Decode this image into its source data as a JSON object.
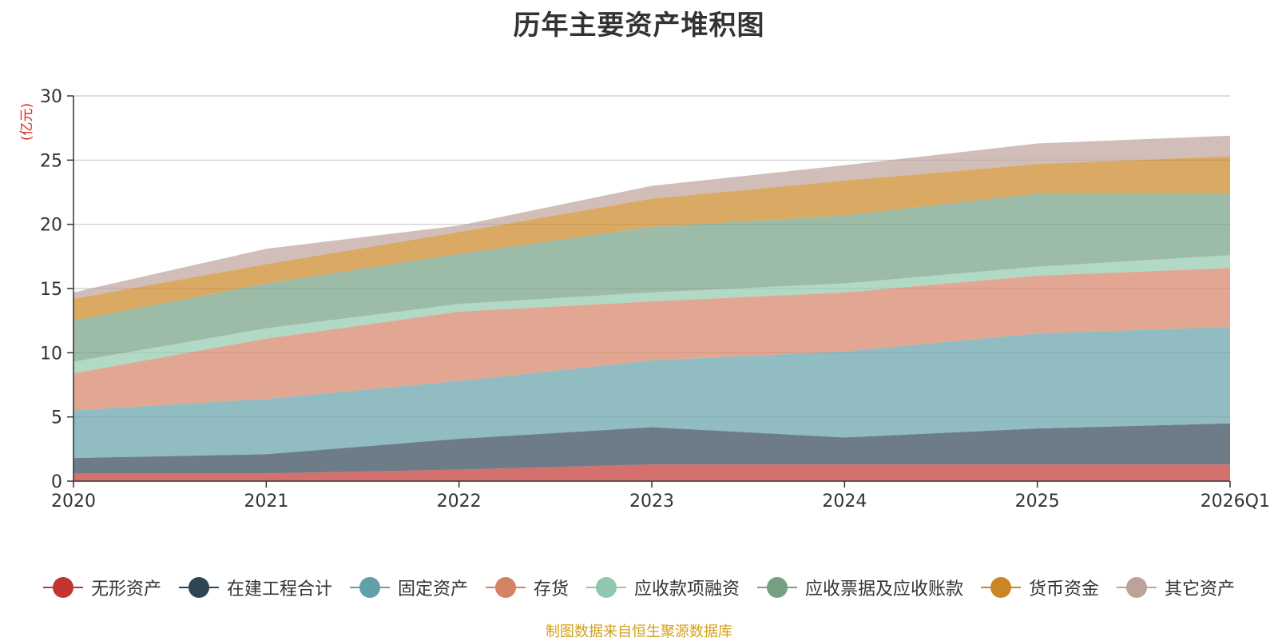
{
  "title": "历年主要资产堆积图",
  "unit_label": "(亿元)",
  "source": "制图数据来自恒生聚源数据库",
  "chart_data": {
    "type": "area",
    "stacked": true,
    "title": "历年主要资产堆积图",
    "ylabel": "(亿元)",
    "xlabel": "",
    "categories": [
      "2020",
      "2021",
      "2022",
      "2023",
      "2024",
      "2025",
      "2026Q1"
    ],
    "ylim": [
      0,
      30
    ],
    "yticks": [
      0,
      5,
      10,
      15,
      20,
      25,
      30
    ],
    "grid": true,
    "legend_position": "bottom",
    "series": [
      {
        "name": "无形资产",
        "color": "#c23531",
        "values": [
          0.6,
          0.6,
          0.9,
          1.3,
          1.3,
          1.3,
          1.3
        ]
      },
      {
        "name": "在建工程合计",
        "color": "#2f4554",
        "values": [
          1.2,
          1.5,
          2.4,
          2.9,
          2.1,
          2.8,
          3.2
        ]
      },
      {
        "name": "固定资产",
        "color": "#61a0a8",
        "values": [
          3.7,
          4.3,
          4.5,
          5.2,
          6.7,
          7.4,
          7.5
        ]
      },
      {
        "name": "存货",
        "color": "#d48265",
        "values": [
          2.9,
          4.7,
          5.4,
          4.6,
          4.6,
          4.5,
          4.6
        ]
      },
      {
        "name": "应收款项融资",
        "color": "#91c7ae",
        "values": [
          0.9,
          0.8,
          0.6,
          0.7,
          0.7,
          0.7,
          1.0
        ]
      },
      {
        "name": "应收票据及应收账款",
        "color": "#749f83",
        "values": [
          3.2,
          3.5,
          3.9,
          5.1,
          5.3,
          5.7,
          4.8
        ]
      },
      {
        "name": "货币资金",
        "color": "#ca8622",
        "values": [
          1.7,
          1.5,
          1.7,
          2.2,
          2.7,
          2.3,
          2.9
        ]
      },
      {
        "name": "其它资产",
        "color": "#bda29a",
        "values": [
          0.5,
          1.2,
          0.5,
          1.0,
          1.2,
          1.6,
          1.6
        ]
      }
    ]
  }
}
